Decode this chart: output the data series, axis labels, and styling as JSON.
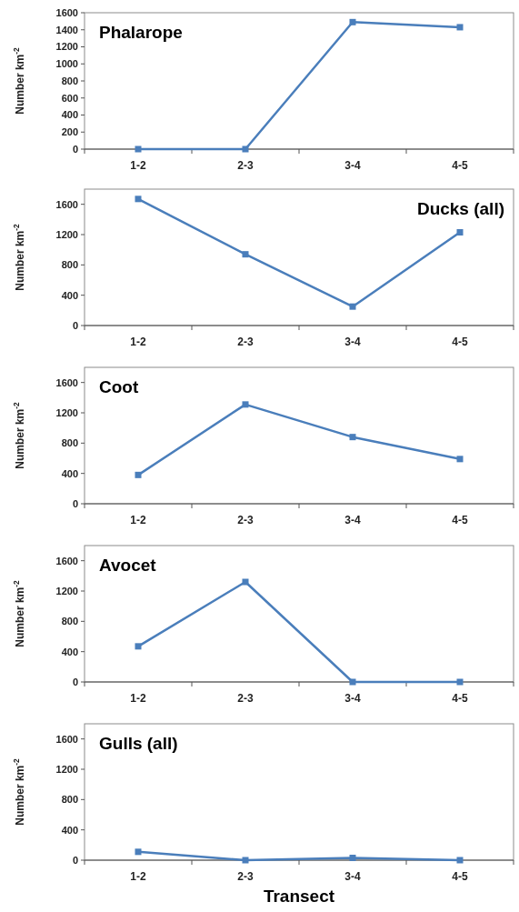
{
  "chart_data": [
    {
      "type": "line",
      "title": "Phalarope",
      "ylabel": "Number  km$^{-2}$",
      "categories": [
        "1-2",
        "2-3",
        "3-4",
        "4-5"
      ],
      "series": [
        {
          "color": "#4a7ebb",
          "values": [
            0,
            0,
            1490,
            1430
          ]
        }
      ],
      "ylim": [
        0,
        1600
      ],
      "yticks": [
        0,
        200,
        400,
        600,
        800,
        1000,
        1200,
        1400,
        1600
      ],
      "marker": "square"
    },
    {
      "type": "line",
      "title": "Ducks (all)",
      "ylabel": "Number  km$^{-2}$",
      "categories": [
        "1-2",
        "2-3",
        "3-4",
        "4-5"
      ],
      "series": [
        {
          "color": "#4a7ebb",
          "values": [
            1670,
            940,
            250,
            1230
          ]
        }
      ],
      "ylim": [
        0,
        1800
      ],
      "yticks": [
        0,
        400,
        800,
        1200,
        1600
      ],
      "marker": "square"
    },
    {
      "type": "line",
      "title": "Coot",
      "ylabel": "Number  km$^{-2}$",
      "categories": [
        "1-2",
        "2-3",
        "3-4",
        "4-5"
      ],
      "series": [
        {
          "color": "#4a7ebb",
          "values": [
            380,
            1310,
            880,
            590
          ]
        }
      ],
      "ylim": [
        0,
        1800
      ],
      "yticks": [
        0,
        400,
        800,
        1200,
        1600
      ],
      "marker": "square"
    },
    {
      "type": "line",
      "title": "Avocet",
      "ylabel": "Number  km$^{-2}$",
      "categories": [
        "1-2",
        "2-3",
        "3-4",
        "4-5"
      ],
      "series": [
        {
          "color": "#4a7ebb",
          "values": [
            470,
            1320,
            0,
            0
          ]
        }
      ],
      "ylim": [
        0,
        1800
      ],
      "yticks": [
        0,
        400,
        800,
        1200,
        1600
      ],
      "marker": "square"
    },
    {
      "type": "line",
      "title": "Gulls (all)",
      "ylabel": "Number  km$^{-2}$",
      "xlabel": "Transect",
      "categories": [
        "1-2",
        "2-3",
        "3-4",
        "4-5"
      ],
      "series": [
        {
          "color": "#4a7ebb",
          "values": [
            110,
            0,
            30,
            0
          ]
        }
      ],
      "ylim": [
        0,
        1800
      ],
      "yticks": [
        0,
        400,
        800,
        1200,
        1600
      ],
      "marker": "square"
    }
  ]
}
